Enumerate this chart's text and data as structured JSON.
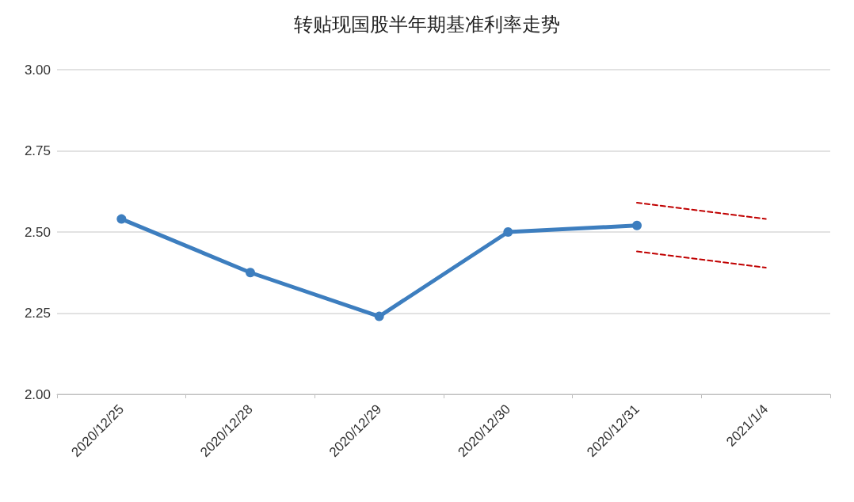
{
  "chart_data": {
    "type": "line",
    "title": "转贴现国股半年期基准利率走势",
    "categories": [
      "2020/12/25",
      "2020/12/28",
      "2020/12/29",
      "2020/12/30",
      "2020/12/31",
      "2021/1/4"
    ],
    "series": [
      {
        "color": "#3d7ebf",
        "values": [
          2.54,
          2.375,
          2.24,
          2.5,
          2.52,
          null
        ],
        "marker": "circle",
        "line_style": "solid"
      },
      {
        "color": "#c00000",
        "values": [
          null,
          null,
          null,
          null,
          2.59,
          2.54
        ],
        "marker": "none",
        "line_style": "dashed"
      },
      {
        "color": "#c00000",
        "values": [
          null,
          null,
          null,
          null,
          2.44,
          2.39
        ],
        "marker": "none",
        "line_style": "dashed"
      }
    ],
    "ylim": [
      2,
      3
    ],
    "yticks": [
      {
        "value": 2,
        "label": "2.00"
      },
      {
        "value": 2.25,
        "label": "2.25"
      },
      {
        "value": 2.5,
        "label": "2.50"
      },
      {
        "value": 2.75,
        "label": "2.75"
      },
      {
        "value": 3,
        "label": "3.00"
      }
    ],
    "grid": "y"
  }
}
